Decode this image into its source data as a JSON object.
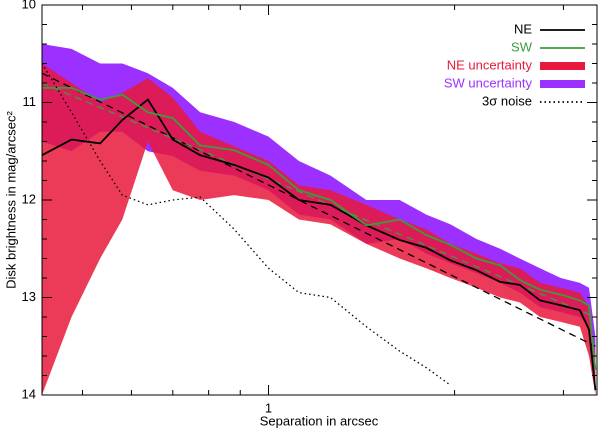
{
  "chart_data": {
    "type": "line",
    "xlabel": "Separation in arcsec",
    "ylabel": "Disk brightness in mag/arcsec²",
    "log_x": true,
    "xlim": [
      0.43,
      3.4
    ],
    "xticks": [
      1
    ],
    "xminorticks": [
      0.5,
      0.6,
      0.7,
      0.8,
      0.9,
      2,
      3
    ],
    "ylim": [
      14,
      10
    ],
    "yticks": [
      10,
      11,
      12,
      13,
      14
    ],
    "yminorticks": [
      10.2,
      10.4,
      10.6,
      10.8,
      11.2,
      11.4,
      11.6,
      11.8,
      12.2,
      12.4,
      12.6,
      12.8,
      13.2,
      13.4,
      13.6,
      13.8
    ],
    "legend": "upper right",
    "x": [
      0.43,
      0.48,
      0.534,
      0.58,
      0.638,
      0.7,
      0.775,
      0.88,
      1.0,
      1.12,
      1.26,
      1.44,
      1.63,
      1.8,
      1.97,
      2.17,
      2.37,
      2.55,
      2.75,
      2.97,
      3.19,
      3.3,
      3.38
    ],
    "series": [
      {
        "name": "NE",
        "kind": "line",
        "color": "#000000",
        "values": [
          11.54,
          11.38,
          11.42,
          11.18,
          10.97,
          11.38,
          11.54,
          11.64,
          11.77,
          12.0,
          12.05,
          12.26,
          12.41,
          12.49,
          12.62,
          12.72,
          12.84,
          12.87,
          13.03,
          13.08,
          13.13,
          13.33,
          13.95
        ]
      },
      {
        "name": "SW",
        "kind": "line",
        "color": "#3c9c3c",
        "values": [
          10.85,
          10.85,
          10.97,
          10.92,
          11.1,
          11.16,
          11.44,
          11.49,
          11.64,
          11.9,
          12.0,
          12.26,
          12.2,
          12.36,
          12.46,
          12.6,
          12.67,
          12.82,
          12.92,
          12.97,
          13.03,
          13.08,
          13.74
        ]
      },
      {
        "name": "NE uncertainty",
        "kind": "band",
        "color": "#e8193c",
        "lower": [
          10.6,
          10.8,
          11.0,
          10.9,
          10.75,
          10.95,
          11.3,
          11.45,
          11.6,
          11.85,
          11.9,
          12.05,
          12.2,
          12.3,
          12.45,
          12.55,
          12.65,
          12.7,
          12.85,
          12.9,
          12.95,
          13.1,
          13.6
        ],
        "upper": [
          14.0,
          13.2,
          12.6,
          12.2,
          11.4,
          11.9,
          12.0,
          11.95,
          12.0,
          12.2,
          12.25,
          12.45,
          12.6,
          12.7,
          12.8,
          12.9,
          13.0,
          13.05,
          13.2,
          13.25,
          13.3,
          13.6,
          14.0
        ]
      },
      {
        "name": "SW uncertainty",
        "kind": "band",
        "color": "#9b30ff",
        "lower": [
          10.4,
          10.45,
          10.6,
          10.6,
          10.7,
          10.85,
          11.1,
          11.2,
          11.35,
          11.6,
          11.75,
          12.0,
          12.0,
          12.15,
          12.25,
          12.4,
          12.5,
          12.6,
          12.7,
          12.8,
          12.85,
          12.9,
          13.4
        ],
        "upper": [
          11.4,
          11.5,
          11.3,
          11.3,
          11.5,
          11.55,
          11.7,
          11.75,
          11.9,
          12.15,
          12.2,
          12.45,
          12.4,
          12.55,
          12.65,
          12.75,
          12.85,
          12.95,
          13.1,
          13.15,
          13.2,
          13.3,
          14.0
        ]
      },
      {
        "name": "3σ noise",
        "kind": "dotted",
        "color": "#000000",
        "values": [
          10.6,
          11.1,
          11.6,
          11.95,
          12.05,
          12.0,
          11.97,
          12.3,
          12.7,
          12.95,
          13.0,
          13.3,
          13.55,
          13.72,
          13.9,
          null,
          null,
          null,
          null,
          null,
          null,
          null,
          null
        ]
      }
    ],
    "fits": [
      {
        "color": "#000000",
        "x": [
          0.43,
          3.38
        ],
        "values": [
          10.7,
          13.5
        ]
      },
      {
        "color": "#3c9c3c",
        "x": [
          0.43,
          3.38
        ],
        "values": [
          10.8,
          13.2
        ]
      }
    ]
  }
}
